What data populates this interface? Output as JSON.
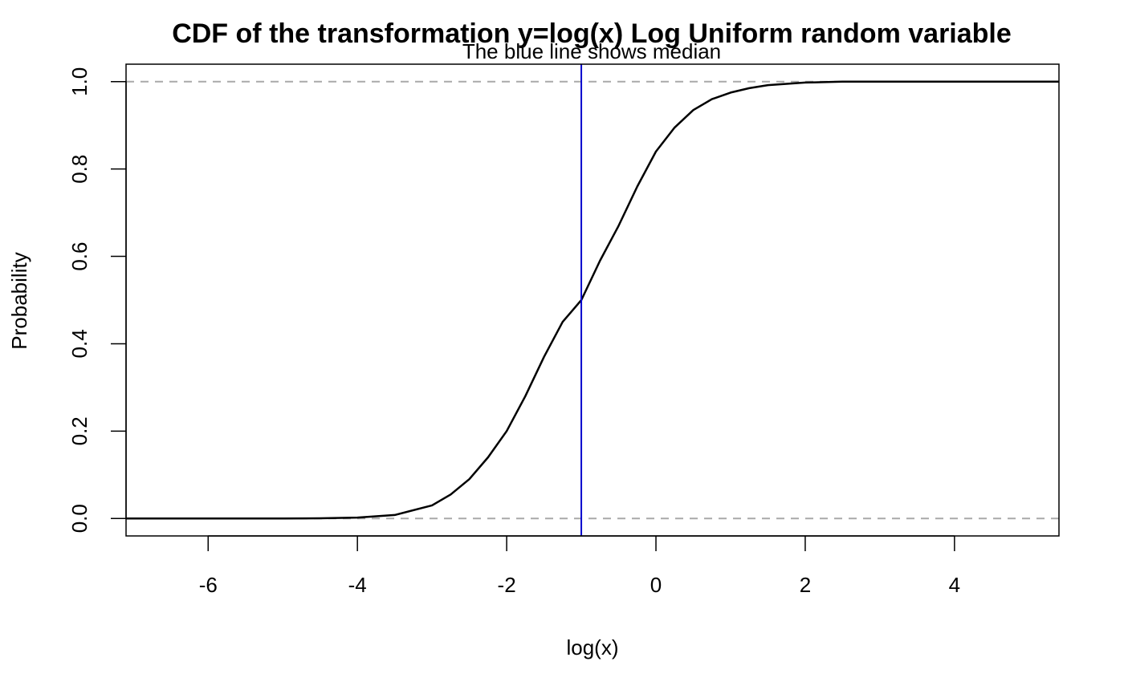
{
  "chart_data": {
    "type": "line",
    "title": "CDF of the transformation y=log(x) Log Uniform random variable",
    "subtitle": "The blue line shows median",
    "xlabel": "log(x)",
    "ylabel": "Probability",
    "xlim": [
      -7.1,
      5.4
    ],
    "ylim": [
      -0.04,
      1.04
    ],
    "x_ticks": [
      -6,
      -4,
      -2,
      0,
      2,
      4
    ],
    "x_tick_labels": [
      "-6",
      "-4",
      "-2",
      "0",
      "2",
      "4"
    ],
    "y_ticks": [
      0.0,
      0.2,
      0.4,
      0.6,
      0.8,
      1.0
    ],
    "y_tick_labels": [
      "0.0",
      "0.2",
      "0.4",
      "0.6",
      "0.8",
      "1.0"
    ],
    "reference_lines_y": [
      0,
      1
    ],
    "median_x": -1.0,
    "colors": {
      "curve": "#000000",
      "median": "#0000cd",
      "reference": "#a9a9a9"
    },
    "series": [
      {
        "x": [
          -7.1,
          -6.5,
          -6.0,
          -5.5,
          -5.0,
          -4.5,
          -4.0,
          -3.5,
          -3.0,
          -2.75,
          -2.5,
          -2.25,
          -2.0,
          -1.75,
          -1.5,
          -1.25,
          -1.0,
          -0.75,
          -0.5,
          -0.25,
          0.0,
          0.25,
          0.5,
          0.75,
          1.0,
          1.25,
          1.5,
          2.0,
          2.5,
          3.0,
          3.5,
          4.0,
          4.5,
          5.0,
          5.4
        ],
        "y": [
          0.0,
          0.0,
          0.0,
          0.0,
          0.0,
          0.0005,
          0.002,
          0.008,
          0.03,
          0.055,
          0.09,
          0.14,
          0.2,
          0.28,
          0.37,
          0.45,
          0.5,
          0.59,
          0.67,
          0.76,
          0.84,
          0.895,
          0.935,
          0.96,
          0.975,
          0.985,
          0.992,
          0.998,
          1.0,
          1.0,
          1.0,
          1.0,
          1.0,
          1.0,
          1.0
        ]
      }
    ]
  }
}
